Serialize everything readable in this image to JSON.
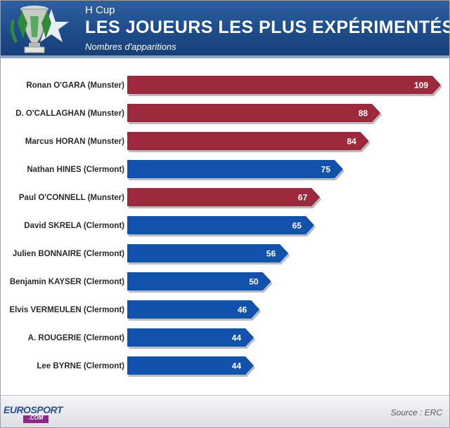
{
  "header": {
    "competition": "H Cup",
    "title": "LES JOUEURS LES PLUS EXPÉRIMENTÉS",
    "subtitle": "Nombres d'apparitions"
  },
  "footer": {
    "logo_main": "EUROSPORT",
    "logo_sub": ".COM",
    "source": "Source : ERC"
  },
  "colors": {
    "munster": "#9c2a3c",
    "clermont": "#1352ac",
    "header_bg": "#1d4a88"
  },
  "chart_data": {
    "type": "bar",
    "orientation": "horizontal",
    "title": "LES JOUEURS LES PLUS EXPÉRIMENTÉS",
    "subtitle": "Nombres d'apparitions",
    "xlabel": "",
    "ylabel": "",
    "xlim": [
      0,
      109
    ],
    "grid": false,
    "legend": "none",
    "categories": [
      "Ronan O'GARA (Munster)",
      "D. O'CALLAGHAN (Munster)",
      "Marcus HORAN (Munster)",
      "Nathan HINES (Clermont)",
      "Paul O'CONNELL (Munster)",
      "David SKRELA (Clermont)",
      "Julien BONNAIRE (Clermont)",
      "Benjamin KAYSER (Clermont)",
      "Elvis VERMEULEN (Clermont)",
      "A. ROUGERIE (Clermont)",
      "Lee BYRNE (Clermont)"
    ],
    "values": [
      109,
      88,
      84,
      75,
      67,
      65,
      56,
      50,
      46,
      44,
      44
    ],
    "teams": [
      "Munster",
      "Munster",
      "Munster",
      "Clermont",
      "Munster",
      "Clermont",
      "Clermont",
      "Clermont",
      "Clermont",
      "Clermont",
      "Clermont"
    ]
  }
}
